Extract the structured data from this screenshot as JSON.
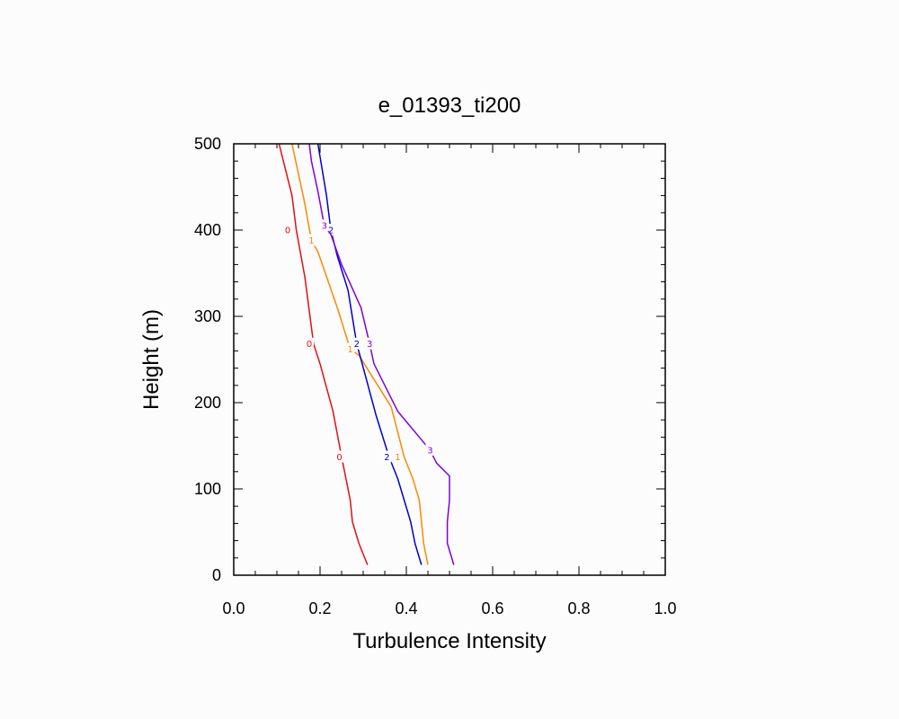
{
  "chart_data": {
    "type": "line",
    "title": "e_01393_ti200",
    "xlabel": "Turbulence Intensity",
    "ylabel": "Height (m)",
    "xlim": [
      0.0,
      1.0
    ],
    "ylim": [
      0,
      500
    ],
    "x_ticks": [
      0.0,
      0.2,
      0.4,
      0.6,
      0.8,
      1.0
    ],
    "x_tick_labels": [
      "0.0",
      "0.2",
      "0.4",
      "0.6",
      "0.8",
      "1.0"
    ],
    "y_ticks": [
      0,
      100,
      200,
      300,
      400,
      500
    ],
    "y_tick_labels": [
      "0",
      "100",
      "200",
      "300",
      "400",
      "500"
    ],
    "grid": false,
    "series": [
      {
        "name": "0",
        "label": "0",
        "label_positions": [
          [
            0.125,
            400
          ],
          [
            0.175,
            268
          ],
          [
            0.245,
            137
          ]
        ],
        "color": "#e01010",
        "points": [
          [
            0.31,
            12
          ],
          [
            0.29,
            37
          ],
          [
            0.275,
            62
          ],
          [
            0.27,
            87
          ],
          [
            0.26,
            112
          ],
          [
            0.25,
            137
          ],
          [
            0.23,
            190
          ],
          [
            0.2,
            245
          ],
          [
            0.185,
            268
          ],
          [
            0.165,
            345
          ],
          [
            0.145,
            400
          ],
          [
            0.135,
            440
          ],
          [
            0.115,
            480
          ],
          [
            0.105,
            500
          ]
        ]
      },
      {
        "name": "1",
        "label": "1",
        "label_positions": [
          [
            0.18,
            388
          ],
          [
            0.27,
            262
          ],
          [
            0.38,
            137
          ]
        ],
        "color": "#ff8800",
        "points": [
          [
            0.45,
            12
          ],
          [
            0.44,
            37
          ],
          [
            0.435,
            62
          ],
          [
            0.43,
            87
          ],
          [
            0.415,
            112
          ],
          [
            0.395,
            137
          ],
          [
            0.365,
            195
          ],
          [
            0.29,
            255
          ],
          [
            0.27,
            262
          ],
          [
            0.24,
            310
          ],
          [
            0.195,
            375
          ],
          [
            0.18,
            388
          ],
          [
            0.165,
            430
          ],
          [
            0.15,
            465
          ],
          [
            0.135,
            500
          ]
        ]
      },
      {
        "name": "2",
        "label": "2",
        "label_positions": [
          [
            0.225,
            400
          ],
          [
            0.285,
            268
          ],
          [
            0.355,
            137
          ]
        ],
        "color": "#0000d0",
        "points": [
          [
            0.435,
            12
          ],
          [
            0.42,
            37
          ],
          [
            0.41,
            62
          ],
          [
            0.395,
            87
          ],
          [
            0.38,
            112
          ],
          [
            0.36,
            137
          ],
          [
            0.33,
            185
          ],
          [
            0.295,
            250
          ],
          [
            0.285,
            268
          ],
          [
            0.265,
            330
          ],
          [
            0.24,
            370
          ],
          [
            0.225,
            400
          ],
          [
            0.215,
            440
          ],
          [
            0.205,
            470
          ],
          [
            0.195,
            500
          ]
        ]
      },
      {
        "name": "3",
        "label": "3",
        "label_positions": [
          [
            0.21,
            405
          ],
          [
            0.315,
            268
          ],
          [
            0.455,
            145
          ]
        ],
        "color": "#8000e0",
        "points": [
          [
            0.51,
            12
          ],
          [
            0.495,
            37
          ],
          [
            0.495,
            62
          ],
          [
            0.5,
            87
          ],
          [
            0.5,
            115
          ],
          [
            0.47,
            130
          ],
          [
            0.455,
            145
          ],
          [
            0.38,
            190
          ],
          [
            0.325,
            245
          ],
          [
            0.315,
            268
          ],
          [
            0.295,
            310
          ],
          [
            0.25,
            360
          ],
          [
            0.225,
            395
          ],
          [
            0.21,
            405
          ],
          [
            0.195,
            445
          ],
          [
            0.18,
            480
          ],
          [
            0.175,
            500
          ]
        ]
      }
    ]
  }
}
